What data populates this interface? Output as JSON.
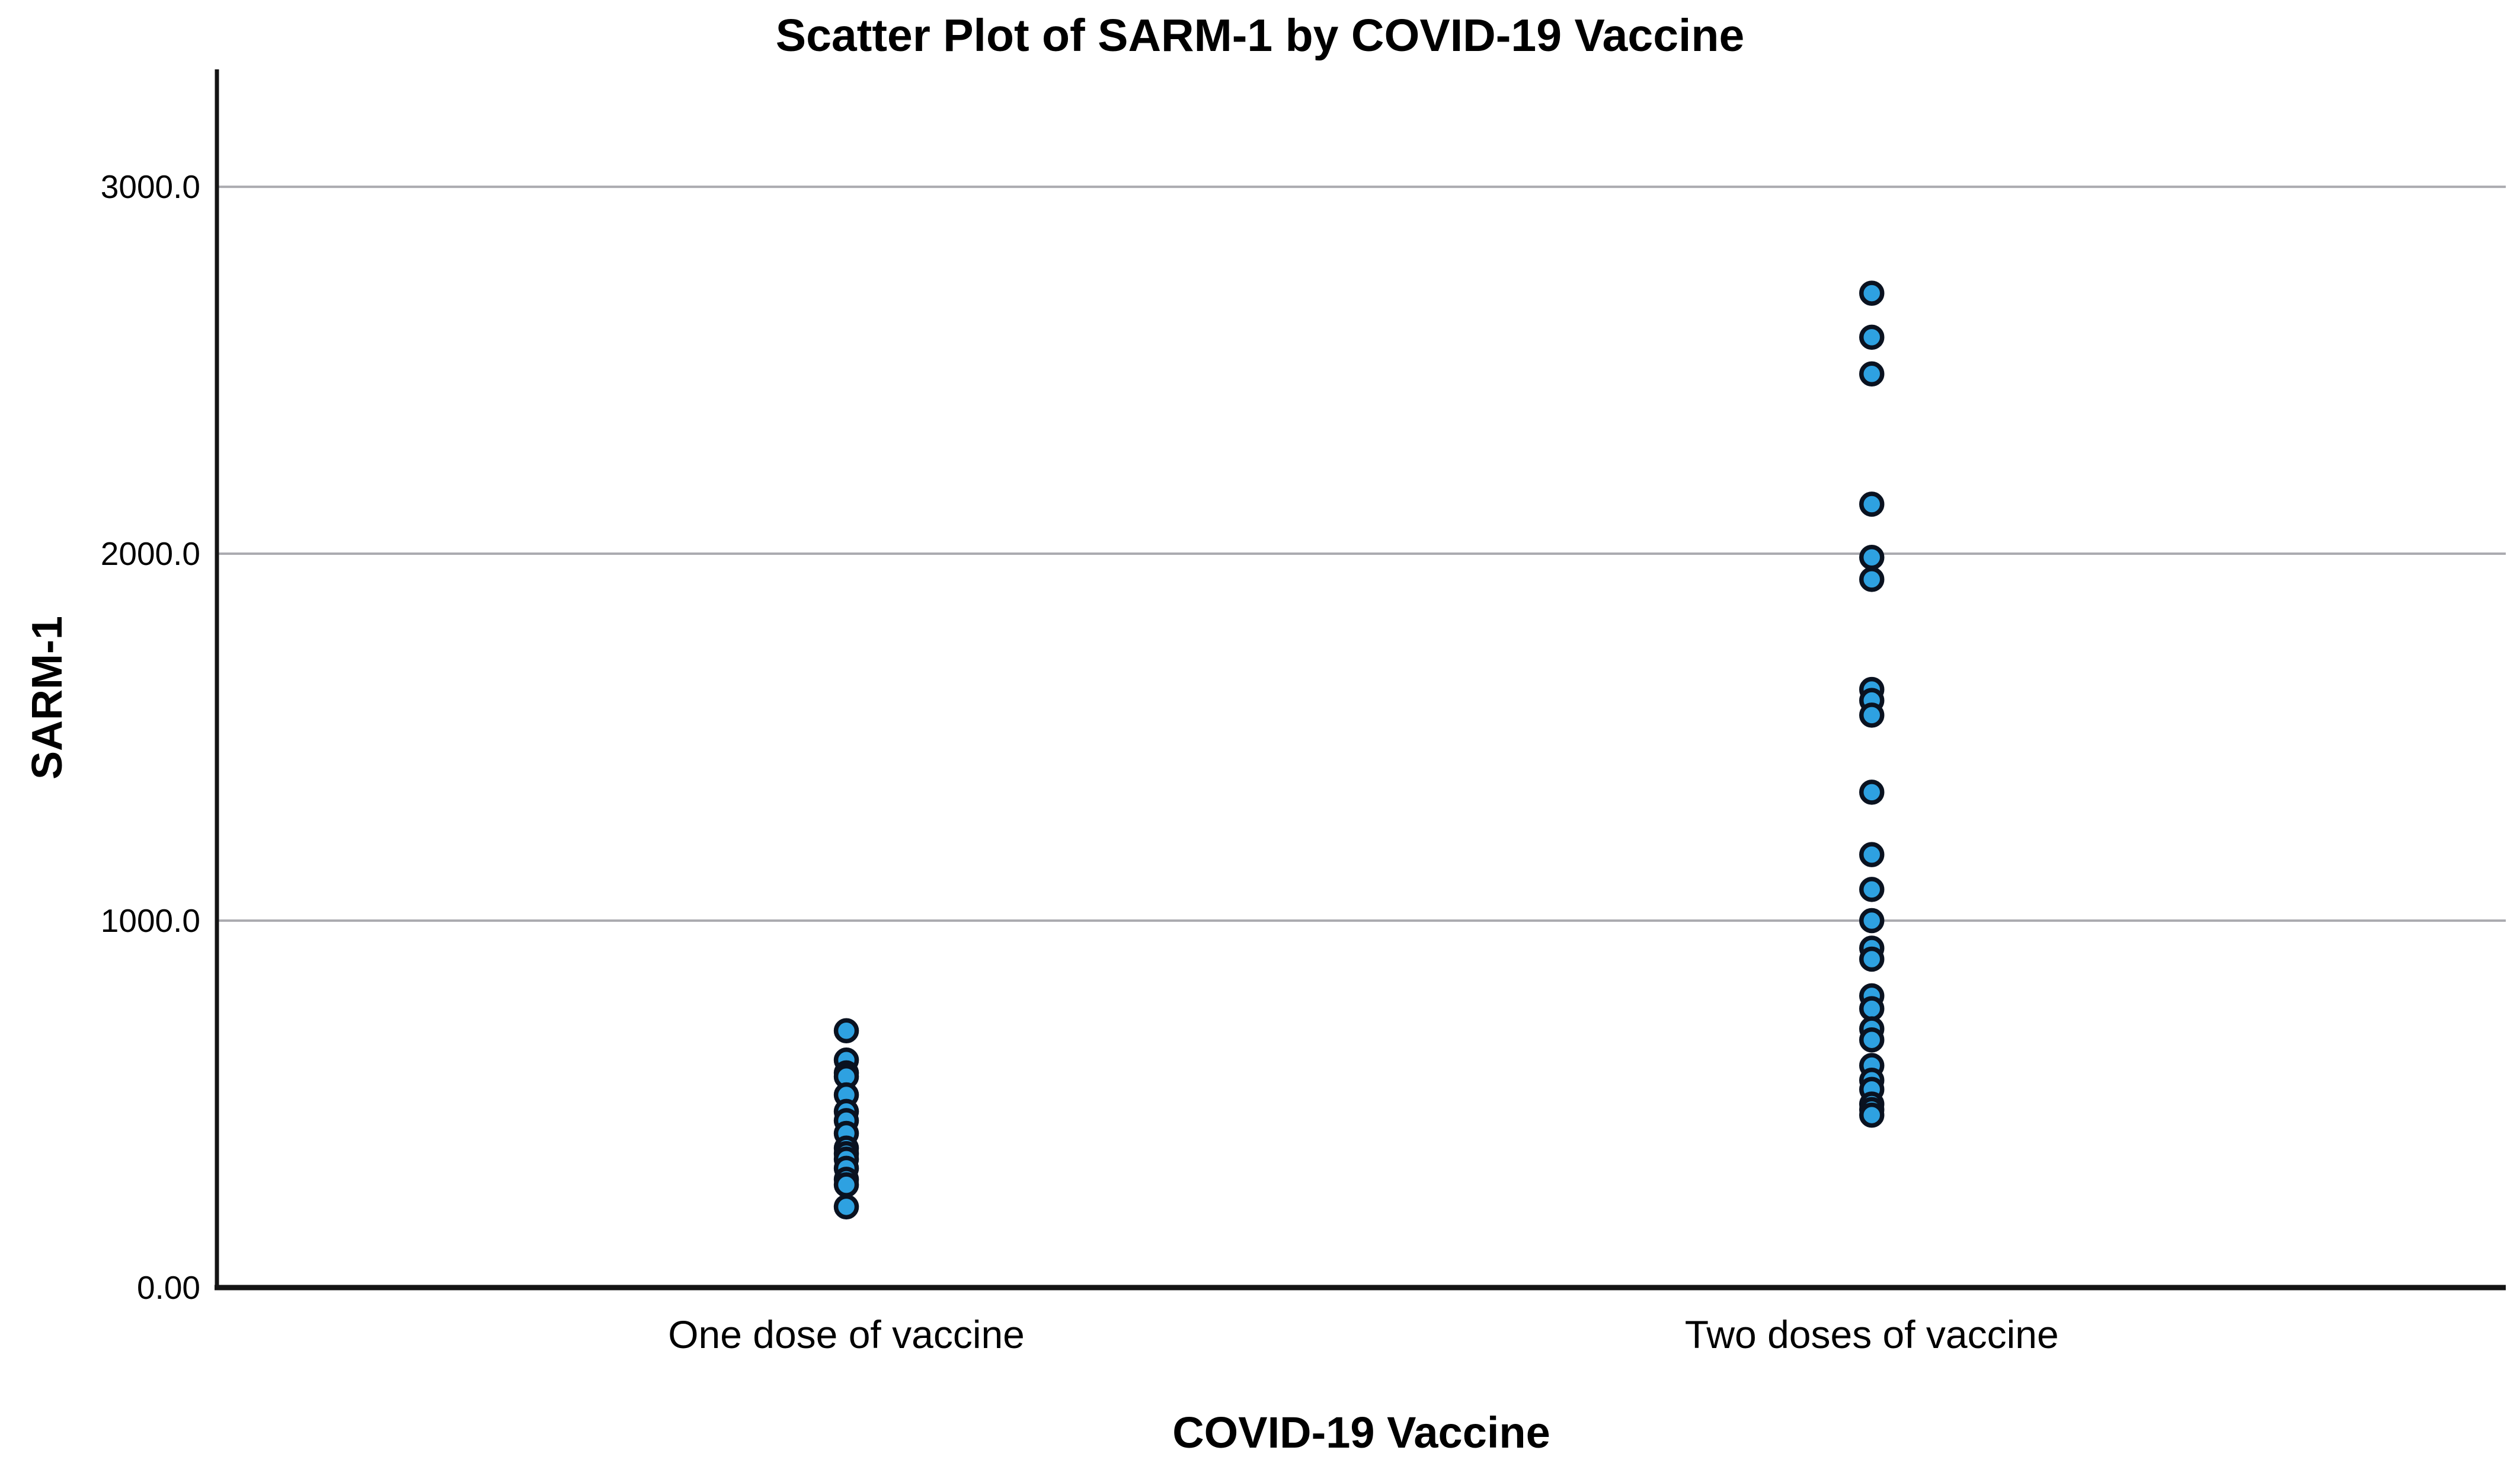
{
  "title": "Scatter Plot of SARM-1 by COVID-19 Vaccine",
  "colors": {
    "background": "#ffffff",
    "dot_fill": "#2ea1e1",
    "dot_stroke": "#0a1220",
    "gridline": "#ababb0",
    "axis_line": "#141414",
    "text": "#000000"
  },
  "chart_data": {
    "type": "scatter",
    "title": "Scatter Plot of SARM-1 by COVID-19 Vaccine",
    "xlabel": "COVID-19 Vaccine",
    "ylabel": "SARM-1",
    "categories": [
      "One dose of vaccine",
      "Two doses of vaccine"
    ],
    "y_ticks": [
      {
        "value": 0,
        "label": "0.00"
      },
      {
        "value": 1000,
        "label": "1000.0"
      },
      {
        "value": 2000,
        "label": "2000.0"
      },
      {
        "value": 3000,
        "label": "3000.0"
      }
    ],
    "ylim": [
      0,
      3320
    ],
    "grid": "horizontal",
    "legend": "none",
    "series": [
      {
        "name": "One dose of vaccine",
        "values": [
          700,
          620,
          585,
          575,
          525,
          480,
          455,
          420,
          380,
          365,
          350,
          325,
          295,
          280,
          220
        ]
      },
      {
        "name": "Two doses of vaccine",
        "values": [
          2710,
          2590,
          2490,
          2135,
          1990,
          1930,
          1630,
          1600,
          1560,
          1350,
          1180,
          1085,
          1000,
          925,
          895,
          795,
          760,
          705,
          675,
          605,
          565,
          540,
          500,
          485,
          470
        ]
      }
    ]
  }
}
